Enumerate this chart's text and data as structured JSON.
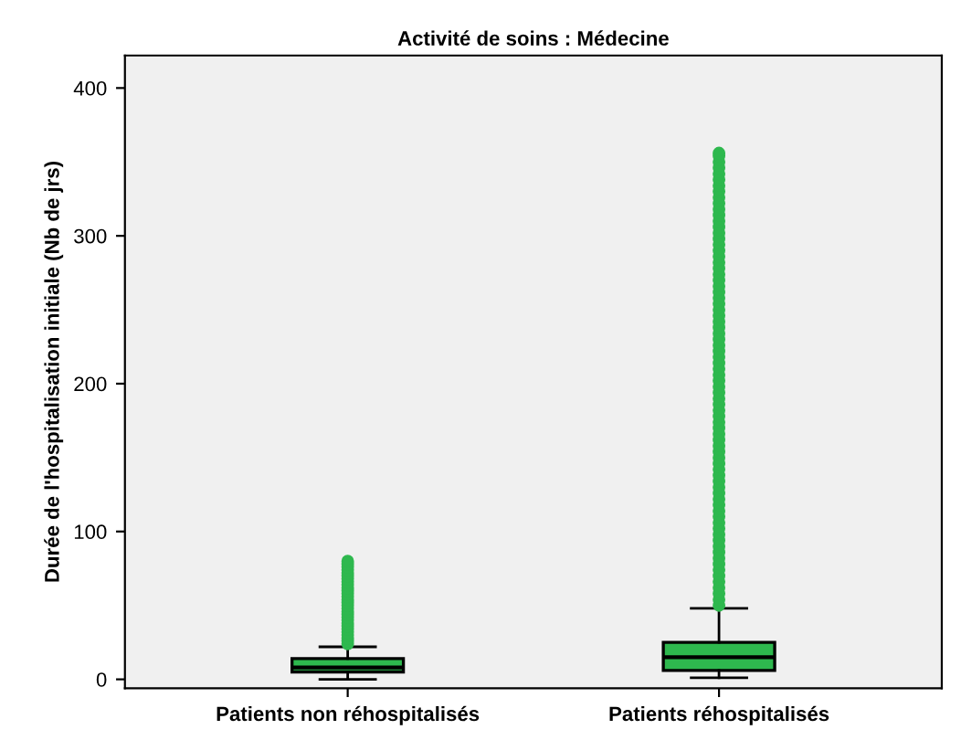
{
  "chart_data": {
    "type": "box",
    "title": "Activité de soins : Médecine",
    "ylabel": "Durée de l'hospitalisation initiale (Nb de jrs)",
    "categories": [
      "Patients non réhospitalisés",
      "Patients réhospitalisés"
    ],
    "color": "#2eb84e",
    "marker": "circle",
    "grid": false,
    "ylim": [
      -6,
      422
    ],
    "yticks": [
      0,
      100,
      200,
      300,
      400
    ],
    "boxes": [
      {
        "low": 0,
        "q1": 5,
        "median": 8,
        "q3": 14,
        "high": 22,
        "outliers": [
          24,
          26,
          28,
          30,
          32,
          34,
          36,
          38,
          40,
          42,
          44,
          46,
          48,
          50,
          52,
          54,
          56,
          58,
          60,
          62,
          64,
          66,
          68,
          70,
          72,
          74,
          76,
          78,
          80
        ]
      },
      {
        "low": 1,
        "q1": 6,
        "median": 15,
        "q3": 25,
        "high": 48,
        "outliers": [
          50,
          54,
          58,
          62,
          66,
          70,
          74,
          78,
          82,
          86,
          90,
          94,
          98,
          102,
          106,
          110,
          114,
          118,
          122,
          126,
          130,
          134,
          138,
          142,
          146,
          150,
          154,
          158,
          162,
          166,
          170,
          174,
          178,
          182,
          186,
          190,
          194,
          198,
          202,
          206,
          210,
          214,
          218,
          222,
          226,
          230,
          234,
          238,
          242,
          246,
          250,
          254,
          258,
          262,
          266,
          270,
          274,
          278,
          282,
          286,
          290,
          294,
          298,
          302,
          306,
          310,
          314,
          318,
          322,
          326,
          330,
          334,
          338,
          342,
          346,
          350,
          354,
          356
        ]
      }
    ]
  }
}
